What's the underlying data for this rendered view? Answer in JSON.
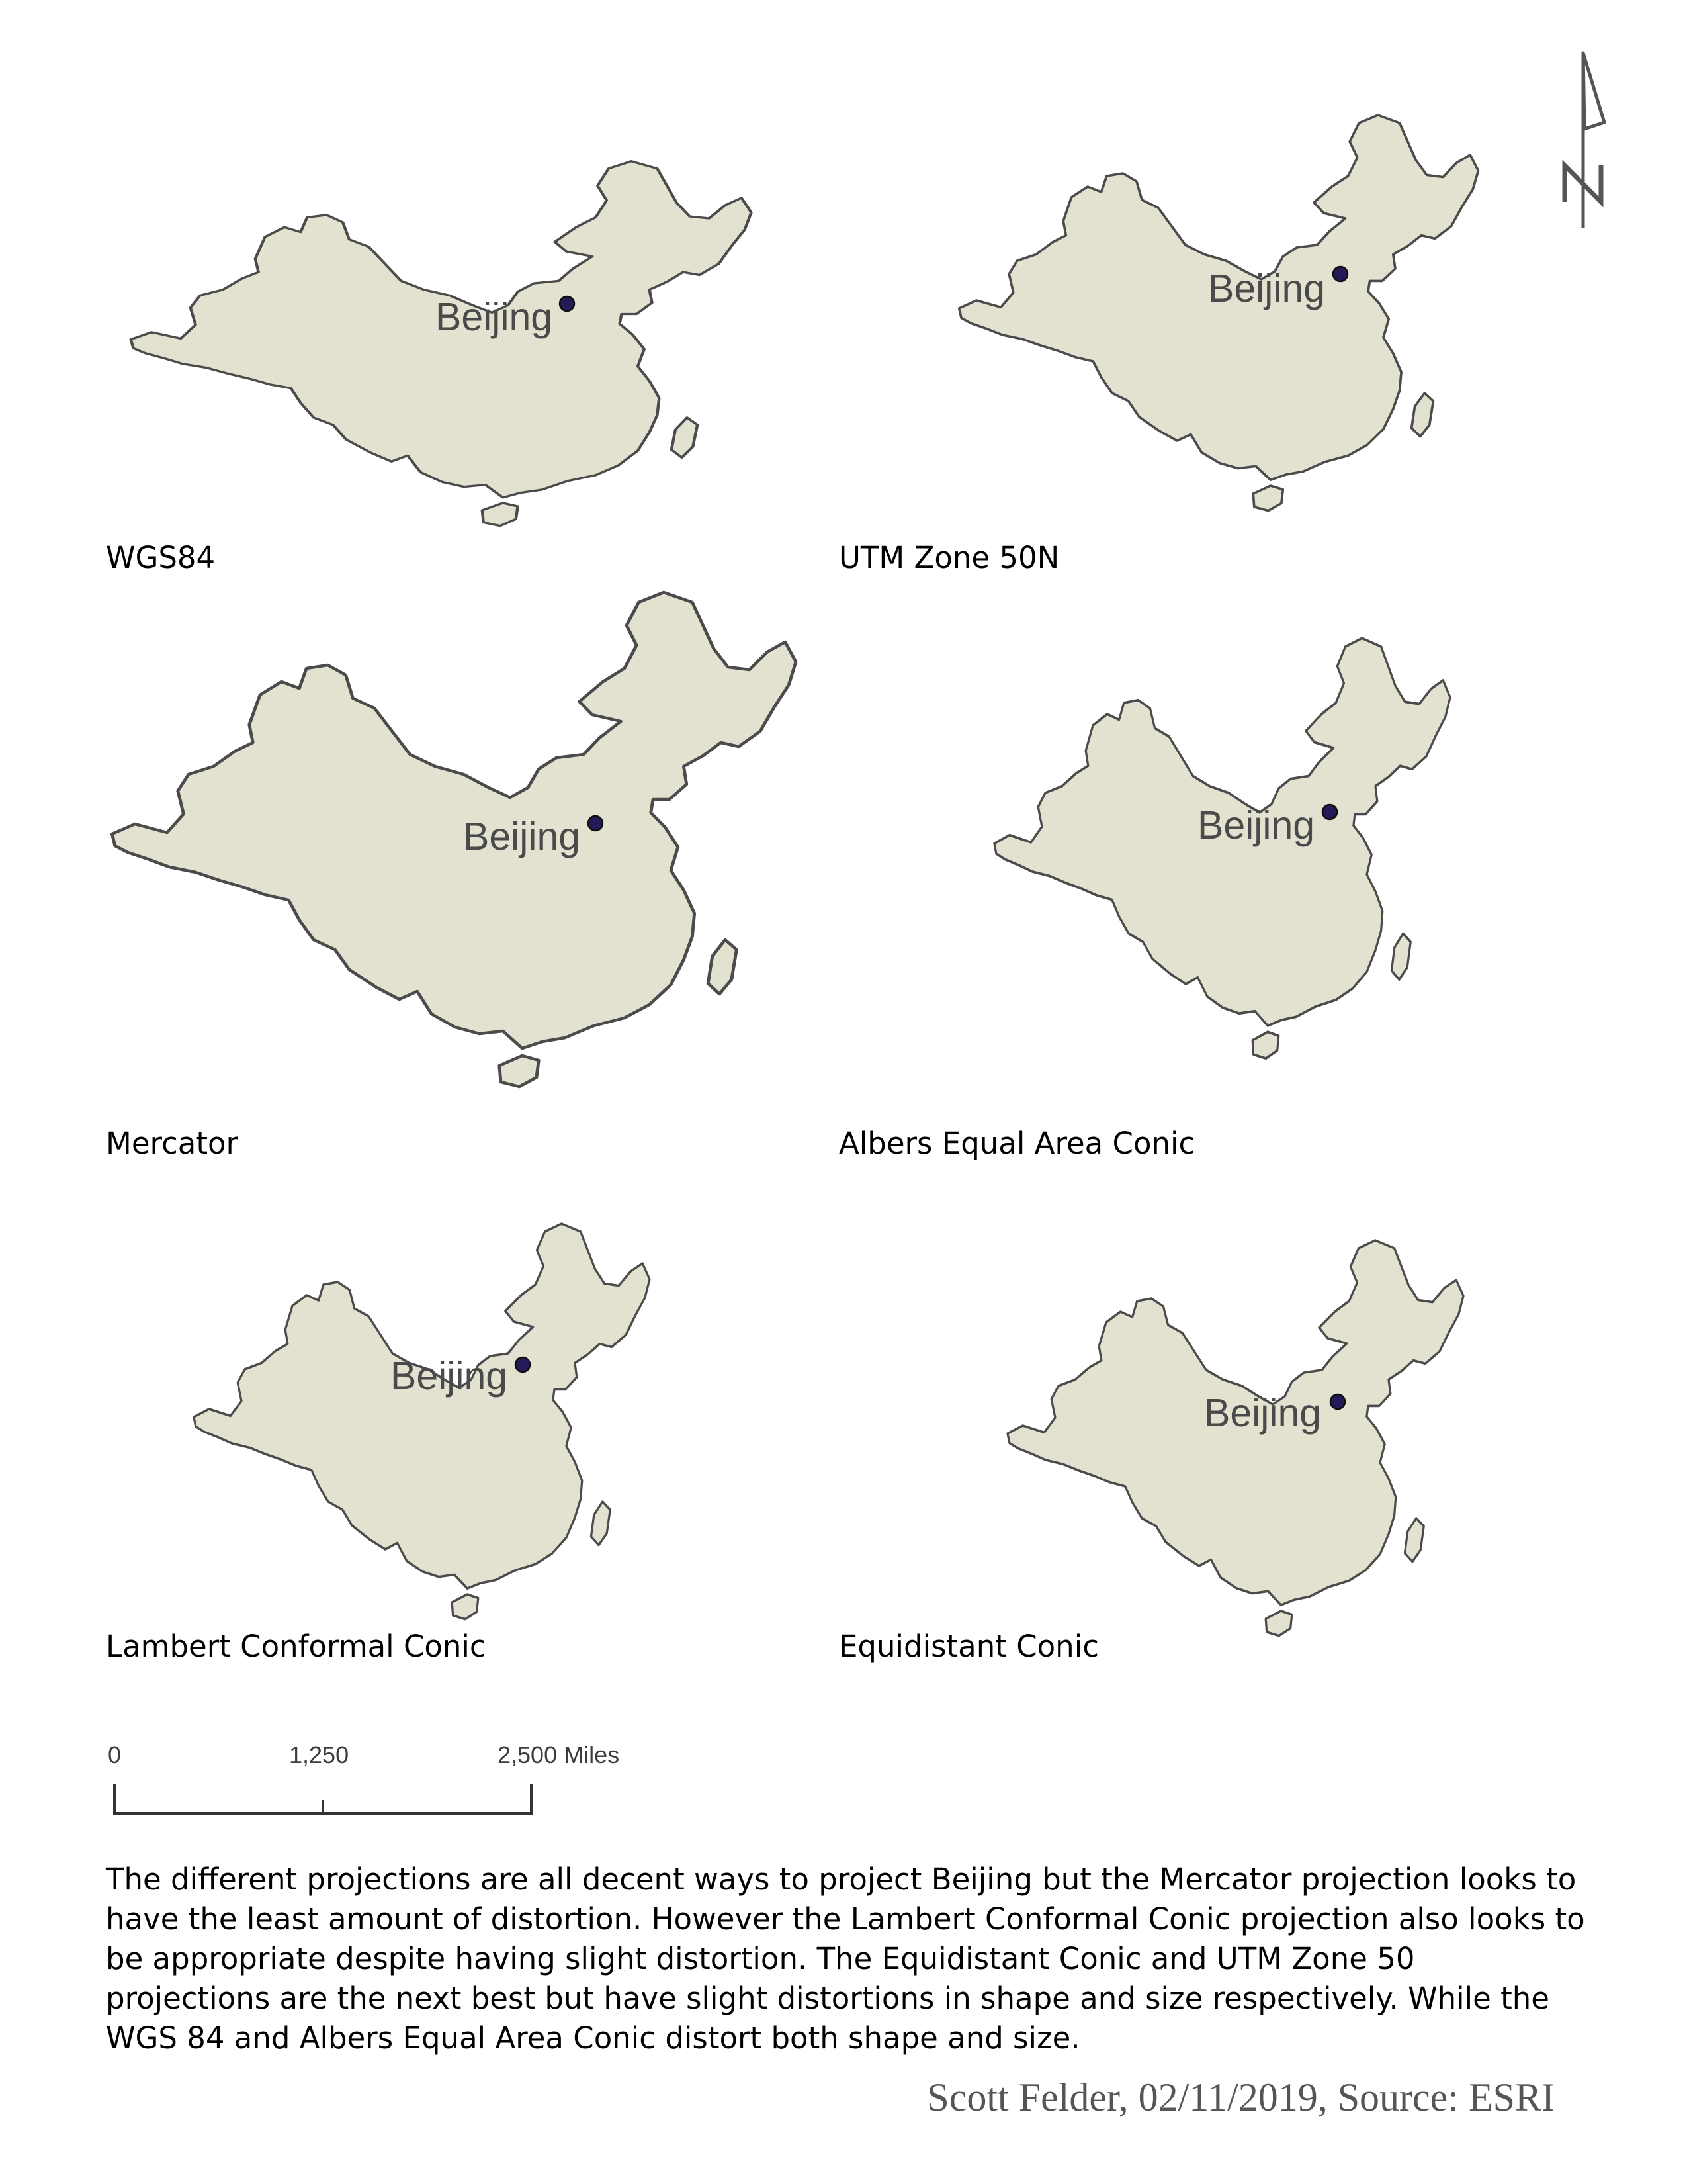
{
  "colors": {
    "land": "#e3e1cf",
    "outline": "#4b4b4b",
    "city_marker": "#241a57",
    "city_label": "#4a4a4a"
  },
  "city": {
    "name": "Beijing"
  },
  "maps": [
    {
      "id": "wgs84",
      "projection": "WGS84"
    },
    {
      "id": "utm",
      "projection": "UTM Zone 50N"
    },
    {
      "id": "mercator",
      "projection": "Mercator"
    },
    {
      "id": "albers",
      "projection": "Albers Equal Area Conic"
    },
    {
      "id": "lambert",
      "projection": "Lambert Conformal Conic"
    },
    {
      "id": "equidistant",
      "projection": "Equidistant Conic"
    }
  ],
  "scale_bar": {
    "ticks": [
      "0",
      "1,250",
      "2,500 Miles"
    ]
  },
  "north_arrow": {
    "icon": "north-arrow-icon",
    "letter": "N"
  },
  "description": "The different projections are all decent ways to project Beijing but the Mercator projection looks to have the least amount of distortion. However the Lambert Conformal Conic projection also looks to be appropriate despite having slight distortion. The Equidistant Conic and UTM Zone 50 projections are the next best but have slight distortions in shape and size respectively. While the WGS 84 and Albers Equal Area Conic distort both shape and size.",
  "credit": "Scott Felder, 02/11/2019, Source: ESRI"
}
